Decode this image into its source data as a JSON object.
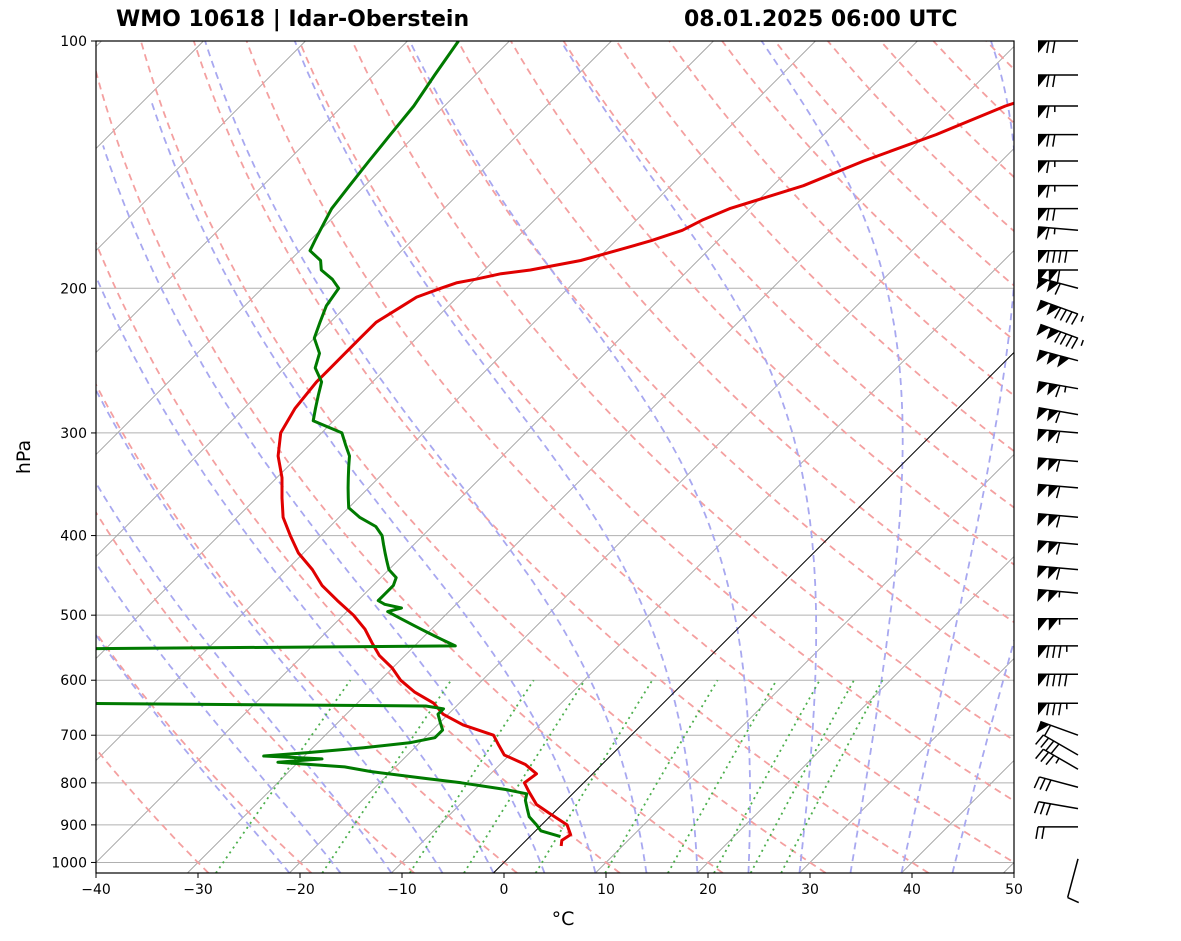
{
  "title_left": "WMO 10618 | Idar-Oberstein",
  "title_right": "08.01.2025 06:00 UTC",
  "chart_data": {
    "type": "skew-t",
    "xlabel": "°C",
    "ylabel": "hPa",
    "xlim": [
      -40,
      50
    ],
    "ylim": [
      1030,
      100
    ],
    "y_scale": "log",
    "x_ticks": [
      -40,
      -30,
      -20,
      -10,
      0,
      10,
      20,
      30,
      40,
      50
    ],
    "x_tick_labels": [
      "−40",
      "−30",
      "−20",
      "−10",
      "0",
      "10",
      "20",
      "30",
      "40",
      "50"
    ],
    "y_ticks": [
      100,
      200,
      300,
      400,
      500,
      600,
      700,
      800,
      900,
      1000
    ],
    "y_tick_labels": [
      "100",
      "200",
      "300",
      "400",
      "500",
      "600",
      "700",
      "800",
      "900",
      "1000"
    ],
    "grid": true,
    "colors": {
      "temperature": "#e00000",
      "dewpoint": "#007a00",
      "dry_adiabats": "#f4a0a0",
      "moist_adiabats": "#a8a8f0",
      "mixing_ratio": "#4caf4c",
      "isotherms": "#a0a0a0",
      "grid": "#b0b0b0"
    },
    "series": [
      {
        "key": "temperature",
        "p": [
          955,
          940,
          925,
          900,
          870,
          850,
          820,
          800,
          780,
          760,
          740,
          720,
          700,
          680,
          660,
          640,
          620,
          600,
          580,
          560,
          540,
          520,
          500,
          480,
          460,
          440,
          420,
          400,
          380,
          360,
          340,
          320,
          300,
          280,
          260,
          250,
          240,
          230,
          220,
          210,
          205,
          200,
          197,
          195,
          192,
          190,
          185,
          180,
          175,
          170,
          165,
          160,
          150,
          140,
          130,
          120,
          115,
          110,
          105,
          102,
          100
        ],
        "t": [
          4,
          3.5,
          3.8,
          2.5,
          -0.5,
          -2.5,
          -4.5,
          -5.8,
          -5.5,
          -7.5,
          -10.5,
          -12,
          -13.5,
          -17.5,
          -20.5,
          -22.5,
          -25.5,
          -28,
          -30,
          -32.5,
          -34.5,
          -36.5,
          -39,
          -42,
          -45,
          -47.5,
          -50.5,
          -53,
          -55.5,
          -57.5,
          -59.5,
          -62,
          -64,
          -65,
          -65.5,
          -65.5,
          -65.5,
          -65.5,
          -65.5,
          -64.5,
          -64,
          -62.5,
          -61.5,
          -60,
          -58,
          -55.5,
          -51.5,
          -49,
          -46.5,
          -44.5,
          -43.5,
          -42,
          -37,
          -33.5,
          -29,
          -25,
          -22,
          -21,
          -19,
          -18,
          -17
        ]
      },
      {
        "key": "dewpoint",
        "p": [
          930,
          915,
          900,
          880,
          860,
          840,
          825,
          815,
          800,
          790,
          775,
          765,
          755,
          748,
          742,
          735,
          725,
          715,
          705,
          690,
          675,
          660,
          650,
          645,
          640,
          638,
          632,
          620,
          610,
          600,
          590,
          580,
          570,
          560,
          550,
          545,
          540,
          535,
          530,
          525,
          520,
          515,
          510,
          505,
          500,
          495,
          490,
          485,
          480,
          470,
          460,
          450,
          440,
          430,
          420,
          410,
          400,
          390,
          380,
          370,
          360,
          350,
          340,
          330,
          320,
          310,
          300,
          290,
          280,
          270,
          260,
          250,
          240,
          230,
          220,
          210,
          200,
          195,
          190,
          185,
          180,
          175,
          170,
          160,
          150,
          140,
          130,
          120,
          110,
          100
        ],
        "t": [
          3,
          0.5,
          -0.5,
          -2,
          -3,
          -4,
          -4.5,
          -7,
          -12,
          -16,
          -22,
          -25,
          -32,
          -28,
          -34,
          -30,
          -25,
          -21,
          -19,
          -19,
          -20,
          -21,
          -21,
          -23,
          -60,
          -64,
          -65,
          -66,
          -66,
          -67,
          -68,
          -67.5,
          -67,
          -67.5,
          -68,
          -26,
          -27,
          -28,
          -29,
          -30,
          -31,
          -32,
          -33,
          -34,
          -35,
          -36,
          -35,
          -37,
          -38,
          -38,
          -38,
          -38.5,
          -40,
          -41,
          -42,
          -43,
          -44,
          -45.5,
          -48,
          -50,
          -51,
          -52,
          -53,
          -54,
          -55,
          -56.5,
          -58,
          -62,
          -63,
          -64,
          -65,
          -67,
          -68,
          -70,
          -71,
          -72,
          -72.5,
          -74,
          -76,
          -77,
          -79,
          -79.5,
          -80,
          -81,
          -81.5,
          -82,
          -82.5,
          -83,
          -84,
          -85
        ]
      }
    ],
    "wind_barbs": [
      {
        "p": 100,
        "speed_kt": 70,
        "dir": 270
      },
      {
        "p": 110,
        "speed_kt": 70,
        "dir": 270
      },
      {
        "p": 120,
        "speed_kt": 65,
        "dir": 270
      },
      {
        "p": 130,
        "speed_kt": 70,
        "dir": 270
      },
      {
        "p": 140,
        "speed_kt": 65,
        "dir": 270
      },
      {
        "p": 150,
        "speed_kt": 65,
        "dir": 270
      },
      {
        "p": 160,
        "speed_kt": 70,
        "dir": 270
      },
      {
        "p": 170,
        "speed_kt": 65,
        "dir": 275
      },
      {
        "p": 180,
        "speed_kt": 90,
        "dir": 270
      },
      {
        "p": 190,
        "speed_kt": 110,
        "dir": 270
      },
      {
        "p": 200,
        "speed_kt": 110,
        "dir": 285
      },
      {
        "p": 215,
        "speed_kt": 145,
        "dir": 290
      },
      {
        "p": 230,
        "speed_kt": 145,
        "dir": 290
      },
      {
        "p": 245,
        "speed_kt": 150,
        "dir": 285
      },
      {
        "p": 265,
        "speed_kt": 115,
        "dir": 280
      },
      {
        "p": 285,
        "speed_kt": 110,
        "dir": 280
      },
      {
        "p": 300,
        "speed_kt": 110,
        "dir": 275
      },
      {
        "p": 325,
        "speed_kt": 110,
        "dir": 275
      },
      {
        "p": 350,
        "speed_kt": 110,
        "dir": 275
      },
      {
        "p": 380,
        "speed_kt": 110,
        "dir": 275
      },
      {
        "p": 410,
        "speed_kt": 110,
        "dir": 275
      },
      {
        "p": 440,
        "speed_kt": 110,
        "dir": 275
      },
      {
        "p": 470,
        "speed_kt": 105,
        "dir": 275
      },
      {
        "p": 505,
        "speed_kt": 105,
        "dir": 270
      },
      {
        "p": 545,
        "speed_kt": 85,
        "dir": 270
      },
      {
        "p": 590,
        "speed_kt": 90,
        "dir": 270
      },
      {
        "p": 640,
        "speed_kt": 85,
        "dir": 270
      },
      {
        "p": 700,
        "speed_kt": 60,
        "dir": 290
      },
      {
        "p": 740,
        "speed_kt": 40,
        "dir": 300
      },
      {
        "p": 770,
        "speed_kt": 35,
        "dir": 300
      },
      {
        "p": 810,
        "speed_kt": 30,
        "dir": 285
      },
      {
        "p": 860,
        "speed_kt": 30,
        "dir": 280
      },
      {
        "p": 905,
        "speed_kt": 20,
        "dir": 270
      },
      {
        "p": 990,
        "speed_kt": 10,
        "dir": 195
      }
    ]
  }
}
